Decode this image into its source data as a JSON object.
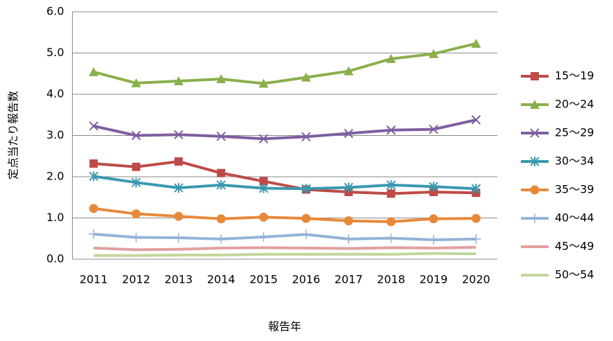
{
  "chart_data": {
    "type": "line",
    "y_label": "定点当たり報告数",
    "x_label": "報告年",
    "categories": [
      "2011",
      "2012",
      "2013",
      "2014",
      "2015",
      "2016",
      "2017",
      "2018",
      "2019",
      "2020"
    ],
    "ylim": [
      0,
      6
    ],
    "yticks": [
      {
        "value": 0,
        "label": "0.0"
      },
      {
        "value": 1,
        "label": "1.0"
      },
      {
        "value": 2,
        "label": "2.0"
      },
      {
        "value": 3,
        "label": "3.0"
      },
      {
        "value": 4,
        "label": "4.0"
      },
      {
        "value": 5,
        "label": "5.0"
      },
      {
        "value": 6,
        "label": "6.0"
      }
    ],
    "grid": true,
    "legend": "right",
    "series": [
      {
        "name": "15～19",
        "color": "#be4b48",
        "marker": "square",
        "values": [
          2.32,
          2.24,
          2.37,
          2.09,
          1.89,
          1.69,
          1.63,
          1.59,
          1.63,
          1.61
        ]
      },
      {
        "name": "20～24",
        "color": "#8aaf4c",
        "marker": "triangle",
        "values": [
          4.54,
          4.27,
          4.32,
          4.37,
          4.26,
          4.41,
          4.56,
          4.86,
          4.98,
          5.23
        ]
      },
      {
        "name": "25～29",
        "color": "#7d5fa0",
        "marker": "x",
        "values": [
          3.23,
          3.0,
          3.02,
          2.98,
          2.92,
          2.97,
          3.05,
          3.13,
          3.15,
          3.38
        ]
      },
      {
        "name": "30～34",
        "color": "#3a98b0",
        "marker": "star",
        "values": [
          2.01,
          1.86,
          1.73,
          1.8,
          1.72,
          1.71,
          1.74,
          1.8,
          1.76,
          1.71
        ]
      },
      {
        "name": "35～39",
        "color": "#e8893a",
        "marker": "circle",
        "values": [
          1.23,
          1.1,
          1.04,
          0.98,
          1.02,
          0.99,
          0.93,
          0.91,
          0.98,
          0.99
        ]
      },
      {
        "name": "40～44",
        "color": "#95b3d7",
        "marker": "plus",
        "values": [
          0.61,
          0.53,
          0.52,
          0.49,
          0.54,
          0.6,
          0.49,
          0.51,
          0.47,
          0.49
        ]
      },
      {
        "name": "45～49",
        "color": "#e0a09e",
        "marker": "none",
        "values": [
          0.27,
          0.23,
          0.24,
          0.27,
          0.28,
          0.27,
          0.26,
          0.28,
          0.27,
          0.29
        ]
      },
      {
        "name": "50～54",
        "color": "#c3d69b",
        "marker": "none",
        "values": [
          0.09,
          0.09,
          0.1,
          0.1,
          0.12,
          0.12,
          0.12,
          0.12,
          0.14,
          0.13
        ]
      }
    ]
  }
}
